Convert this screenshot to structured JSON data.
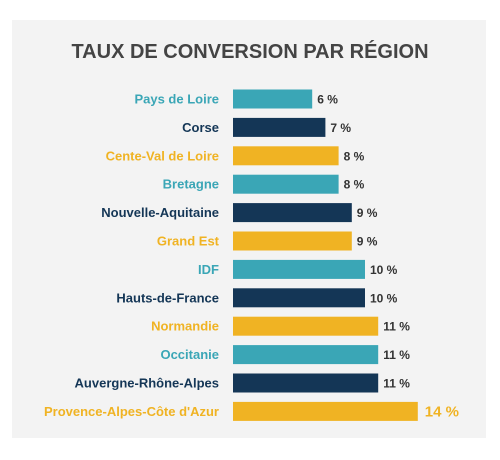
{
  "chart_data": {
    "type": "bar",
    "orientation": "horizontal",
    "title": "TAUX DE CONVERSION PAR RÉGION",
    "categories": [
      "Pays de Loire",
      "Corse",
      "Cente-Val de Loire",
      "Bretagne",
      "Nouvelle-Aquitaine",
      "Grand Est",
      "IDF",
      "Hauts-de-France",
      "Normandie",
      "Occitanie",
      "Auvergne-Rhône-Alpes",
      "Provence-Alpes-Côte d'Azur"
    ],
    "values": [
      6,
      7,
      8,
      8,
      9,
      9,
      10,
      10,
      11,
      11,
      11,
      14
    ],
    "value_labels": [
      "6 %",
      "7 %",
      "8 %",
      "8 %",
      "9 %",
      "9 %",
      "10 %",
      "10 %",
      "11 %",
      "11 %",
      "11 %",
      "14 %"
    ],
    "colors": [
      "#3aa6b6",
      "#143656",
      "#f0b323",
      "#3aa6b6",
      "#143656",
      "#f0b323",
      "#3aa6b6",
      "#143656",
      "#f0b323",
      "#3aa6b6",
      "#143656",
      "#f0b323"
    ],
    "label_colors": [
      "#3aa6b6",
      "#143656",
      "#f0b323",
      "#3aa6b6",
      "#143656",
      "#f0b323",
      "#3aa6b6",
      "#143656",
      "#f0b323",
      "#3aa6b6",
      "#143656",
      "#f0b323"
    ],
    "highlight_index": 11,
    "xlim": [
      0,
      14
    ],
    "grid": false,
    "legend": "none"
  }
}
